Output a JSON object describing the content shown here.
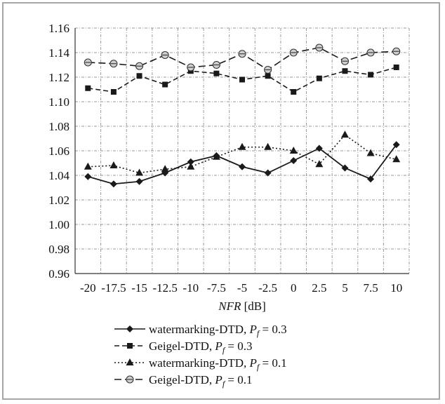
{
  "chart_data": {
    "type": "line",
    "xlabel": "NFR [dB]",
    "x": [
      -20,
      -17.5,
      -15,
      -12.5,
      -10,
      -7.5,
      -5,
      -2.5,
      0,
      2.5,
      5,
      7.5,
      10
    ],
    "x_tick_labels": [
      "-20",
      "-17.5",
      "-15",
      "-12.5",
      "-10",
      "-7.5",
      "-5",
      "-2.5",
      "0",
      "2.5",
      "5",
      "7.5",
      "10"
    ],
    "ylim": [
      0.96,
      1.16
    ],
    "y_ticks": [
      0.96,
      0.98,
      1.0,
      1.02,
      1.04,
      1.06,
      1.08,
      1.1,
      1.12,
      1.14,
      1.16
    ],
    "y_tick_labels": [
      "0.96",
      "0.98",
      "1.00",
      "1.02",
      "1.04",
      "1.06",
      "1.08",
      "1.10",
      "1.12",
      "1.14",
      "1.16"
    ],
    "grid": true,
    "legend_position": "bottom",
    "series": [
      {
        "legend": "watermarking-DTD,",
        "pf": "P",
        "pf_sub": "f",
        "pf_value": " = 0.3",
        "marker": "diamond",
        "line": "solid",
        "values": [
          1.039,
          1.033,
          1.035,
          1.042,
          1.051,
          1.056,
          1.047,
          1.042,
          1.052,
          1.062,
          1.046,
          1.037,
          1.065
        ]
      },
      {
        "legend": "Geigel-DTD,",
        "pf": "P",
        "pf_sub": "f",
        "pf_value": " = 0.3",
        "marker": "square",
        "line": "dashed",
        "values": [
          1.111,
          1.108,
          1.121,
          1.114,
          1.125,
          1.123,
          1.118,
          1.121,
          1.108,
          1.119,
          1.125,
          1.122,
          1.128
        ]
      },
      {
        "legend": "watermarking-DTD,",
        "pf": "P",
        "pf_sub": "f",
        "pf_value": " = 0.1",
        "marker": "triangle",
        "line": "dotted",
        "values": [
          1.047,
          1.048,
          1.042,
          1.045,
          1.047,
          1.055,
          1.063,
          1.063,
          1.06,
          1.049,
          1.073,
          1.058,
          1.053
        ]
      },
      {
        "legend": "Geigel-DTD,",
        "pf": "P",
        "pf_sub": "f",
        "pf_value": " = 0.1",
        "marker": "circle",
        "line": "longdash",
        "values": [
          1.132,
          1.131,
          1.129,
          1.138,
          1.128,
          1.13,
          1.139,
          1.126,
          1.14,
          1.144,
          1.133,
          1.14,
          1.141
        ]
      }
    ]
  }
}
